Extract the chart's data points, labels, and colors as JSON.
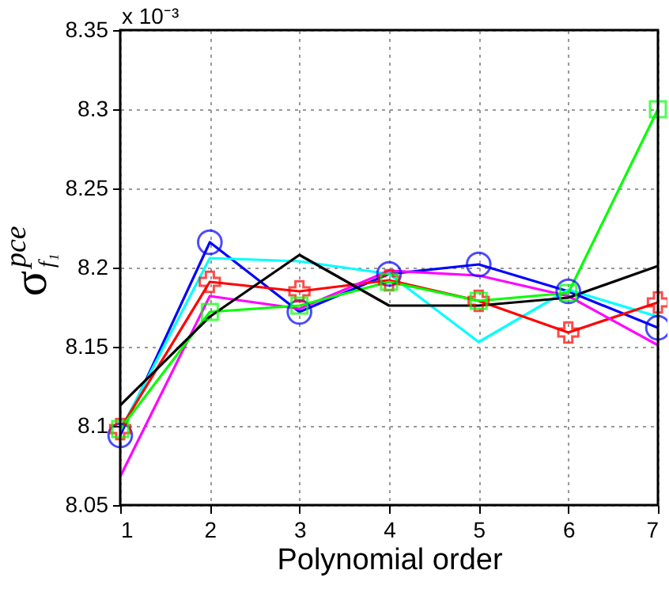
{
  "chart_data": {
    "type": "line",
    "xlabel": "Polynomial order",
    "ylabel": "σ$^{pce}$$_{f₁}$",
    "annotations": [
      "x 10⁻³"
    ],
    "x": [
      1,
      2,
      3,
      4,
      5,
      6,
      7
    ],
    "series": [
      {
        "color": "#0000ff",
        "marker": "circle",
        "values": [
          8.094,
          8.216,
          8.172,
          8.196,
          8.202,
          8.185,
          8.162
        ]
      },
      {
        "color": "#00ffff",
        "marker": "none",
        "values": [
          8.097,
          8.206,
          8.204,
          8.196,
          8.153,
          8.186,
          8.169
        ]
      },
      {
        "color": "#ff0000",
        "marker": "cross",
        "values": [
          8.098,
          8.191,
          8.185,
          8.192,
          8.179,
          8.159,
          8.178
        ]
      },
      {
        "color": "#ff00ff",
        "marker": "none",
        "values": [
          8.068,
          8.182,
          8.174,
          8.198,
          8.195,
          8.182,
          8.151
        ]
      },
      {
        "color": "#00ff00",
        "marker": "square",
        "values": [
          8.098,
          8.172,
          8.176,
          8.191,
          8.179,
          8.184,
          8.3
        ]
      },
      {
        "color": "#000000",
        "marker": "none",
        "values": [
          8.113,
          8.169,
          8.208,
          8.176,
          8.176,
          8.181,
          8.201
        ]
      }
    ],
    "xlim": [
      1,
      7
    ],
    "xticks": [
      1,
      2,
      3,
      4,
      5,
      6,
      7
    ],
    "ylim": [
      8.05,
      8.35
    ],
    "yticks": [
      8.05,
      8.1,
      8.15,
      8.2,
      8.25,
      8.3,
      8.35
    ],
    "grid": true,
    "line_style": "solid",
    "legend": false
  }
}
